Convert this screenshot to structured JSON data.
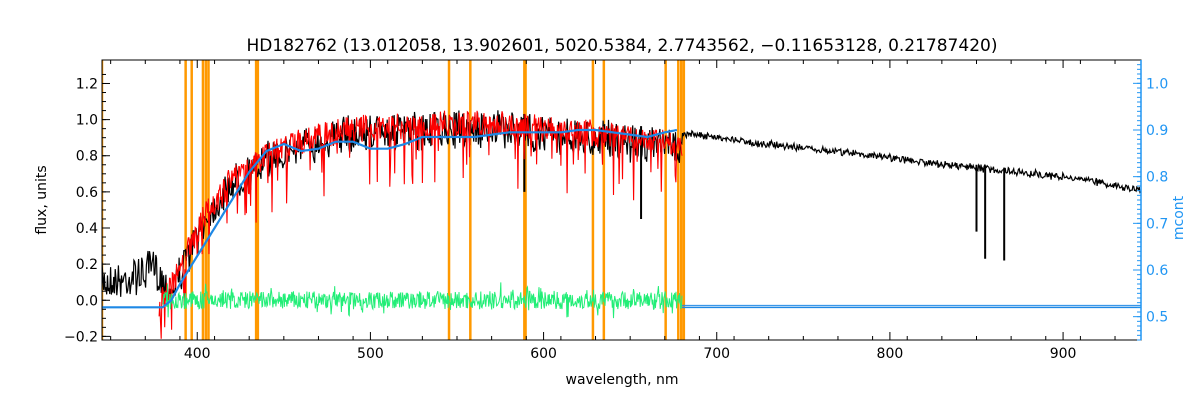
{
  "chart_data": {
    "type": "line",
    "title": "HD182762    (13.012058, 13.902601, 5020.5384, 2.7743562, −0.11653128, 0.21787420)",
    "xlabel": "wavelength, nm",
    "ylabel": "flux, units",
    "y2label": "mcont",
    "xlim": [
      345,
      945
    ],
    "ylim": [
      -0.22,
      1.33
    ],
    "y2lim": [
      0.45,
      1.05
    ],
    "x_ticks": [
      "400",
      "500",
      "600",
      "700",
      "800",
      "900"
    ],
    "y_ticks": [
      "−0.2",
      "0.0",
      "0.2",
      "0.4",
      "0.6",
      "0.8",
      "1.0",
      "1.2"
    ],
    "y2_ticks": [
      "0.5",
      "0.6",
      "0.7",
      "0.8",
      "0.9",
      "1.0"
    ],
    "grid": false,
    "colors": {
      "observed": "#000000",
      "model": "#ff0000",
      "continuum": "#1e88e5",
      "residuals": "#22ee77",
      "masks": "#ff9900",
      "right_axis": "#2196f3"
    },
    "mask_lines_nm": [
      345,
      393.3,
      396.8,
      403.3,
      405,
      406.5,
      434.0,
      435,
      545.4,
      557.7,
      588.9,
      589.6,
      628.5,
      634.8,
      670.5,
      677.8,
      679.5,
      681
    ],
    "series": [
      {
        "name": "",
        "role": "observed",
        "x": [
          345,
          360,
          375,
          385,
          395,
          405,
          420,
          435,
          445,
          460,
          470,
          480,
          490,
          500,
          520,
          540,
          560,
          580,
          600,
          620,
          640,
          660,
          680,
          700,
          720,
          740,
          760,
          780,
          800,
          820,
          840,
          860,
          880,
          900,
          920,
          945
        ],
        "y": [
          0.2,
          0.22,
          0.27,
          0.15,
          0.35,
          0.55,
          0.75,
          0.83,
          0.9,
          0.95,
          0.98,
          1.0,
          1.02,
          1.03,
          1.03,
          1.04,
          1.05,
          1.04,
          1.02,
          1.0,
          0.98,
          0.96,
          0.94,
          0.92,
          0.89,
          0.87,
          0.85,
          0.83,
          0.81,
          0.78,
          0.76,
          0.74,
          0.72,
          0.7,
          0.67,
          0.63
        ]
      },
      {
        "name": "",
        "role": "model",
        "x": [
          378,
          385,
          395,
          405,
          420,
          435,
          445,
          460,
          470,
          480,
          490,
          500,
          520,
          540,
          560,
          580,
          600,
          620,
          640,
          660,
          680
        ],
        "y": [
          0.05,
          0.15,
          0.35,
          0.55,
          0.75,
          0.83,
          0.9,
          0.95,
          0.98,
          1.0,
          1.02,
          1.03,
          1.03,
          1.04,
          1.05,
          1.04,
          1.02,
          1.0,
          0.98,
          0.96,
          0.94
        ]
      },
      {
        "name": "",
        "role": "continuum (right axis)",
        "x": [
          345,
          380,
          385,
          390,
          400,
          410,
          420,
          430,
          440,
          450,
          460,
          470,
          480,
          490,
          500,
          510,
          520,
          530,
          540,
          550,
          560,
          570,
          580,
          590,
          600,
          610,
          620,
          630,
          640,
          650,
          660,
          670,
          677
        ],
        "y": [
          0.52,
          0.52,
          0.535,
          0.57,
          0.63,
          0.69,
          0.75,
          0.81,
          0.855,
          0.87,
          0.855,
          0.86,
          0.875,
          0.875,
          0.86,
          0.86,
          0.87,
          0.885,
          0.885,
          0.885,
          0.885,
          0.89,
          0.895,
          0.895,
          0.895,
          0.895,
          0.9,
          0.9,
          0.895,
          0.89,
          0.885,
          0.895,
          0.9
        ]
      },
      {
        "name": "",
        "role": "continuum tail (right axis)",
        "x": [
          680,
          945
        ],
        "y": [
          0.52,
          0.52
        ]
      },
      {
        "name": "",
        "role": "residuals",
        "x": [
          380,
          680
        ],
        "y": [
          0.0,
          0.0
        ],
        "scatter": 0.05
      }
    ],
    "absorption_dips": [
      {
        "x": 588.9,
        "y": 0.6
      },
      {
        "x": 656.3,
        "y": 0.45
      },
      {
        "x": 850,
        "y": 0.38
      },
      {
        "x": 855,
        "y": 0.23
      },
      {
        "x": 866,
        "y": 0.22
      }
    ]
  }
}
